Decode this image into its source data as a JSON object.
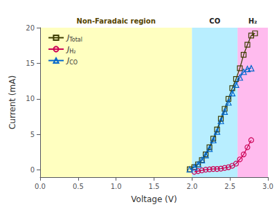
{
  "chart_data": {
    "type": "line",
    "xlabel": "Voltage (V)",
    "ylabel": "Current (mA)",
    "xlim": [
      0.0,
      3.0
    ],
    "ylim": [
      -1.0,
      20.0
    ],
    "xticks": [
      {
        "value": 0.0,
        "label": "0.0"
      },
      0.5,
      {
        "value": 1.0,
        "label": "1.0"
      },
      1.5,
      {
        "value": 2.0,
        "label": "2.0"
      },
      2.5,
      {
        "value": 3.0,
        "label": "3.0"
      }
    ],
    "yticks": [
      0,
      5,
      10,
      15,
      20
    ],
    "grid": false,
    "legend": "upper left",
    "regions": [
      {
        "x": [
          0.0,
          2.0
        ],
        "color": "#ffffc0"
      },
      {
        "x": [
          2.0,
          2.6
        ],
        "color": "#b8eeff"
      },
      {
        "x": [
          2.6,
          3.05
        ],
        "color": "#ffbbee"
      }
    ],
    "annotations": [
      {
        "text": "Non-Faradaic region",
        "x": 1.0,
        "color": "#554400"
      },
      {
        "text": "CO",
        "x": 2.3,
        "color": "#222222"
      },
      {
        "text": "H₂",
        "x": 2.8,
        "color": "#222222"
      }
    ],
    "series": [
      {
        "name": "JTotal",
        "color": "#3d3d00",
        "marker": "square",
        "x": [
          1.97,
          2.03,
          2.08,
          2.13,
          2.18,
          2.23,
          2.28,
          2.33,
          2.38,
          2.43,
          2.48,
          2.53,
          2.58,
          2.63,
          2.68,
          2.73,
          2.78,
          2.83
        ],
        "values": [
          0.1,
          0.4,
          0.8,
          1.4,
          2.2,
          3.2,
          4.4,
          5.7,
          7.2,
          8.6,
          10.0,
          11.5,
          12.8,
          14.3,
          16.2,
          17.6,
          18.9,
          19.2
        ]
      },
      {
        "name": "JH₂",
        "color": "#cc0055",
        "marker": "circle",
        "x": [
          2.03,
          2.08,
          2.13,
          2.18,
          2.23,
          2.28,
          2.33,
          2.38,
          2.43,
          2.48,
          2.53,
          2.58,
          2.63,
          2.68,
          2.73,
          2.78
        ],
        "values": [
          -0.25,
          -0.15,
          -0.05,
          0.05,
          0.1,
          0.15,
          0.15,
          0.2,
          0.3,
          0.4,
          0.6,
          0.9,
          1.5,
          2.2,
          3.2,
          4.2
        ]
      },
      {
        "name": "JCO",
        "color": "#0066cc",
        "marker": "triangle",
        "x": [
          1.97,
          2.03,
          2.08,
          2.13,
          2.18,
          2.23,
          2.28,
          2.33,
          2.38,
          2.43,
          2.48,
          2.53,
          2.58,
          2.63,
          2.68,
          2.73,
          2.78
        ],
        "values": [
          0.1,
          0.4,
          0.8,
          1.4,
          2.1,
          3.0,
          4.2,
          5.4,
          6.9,
          8.2,
          9.5,
          10.8,
          12.0,
          13.0,
          13.8,
          14.2,
          14.3
        ]
      }
    ]
  }
}
